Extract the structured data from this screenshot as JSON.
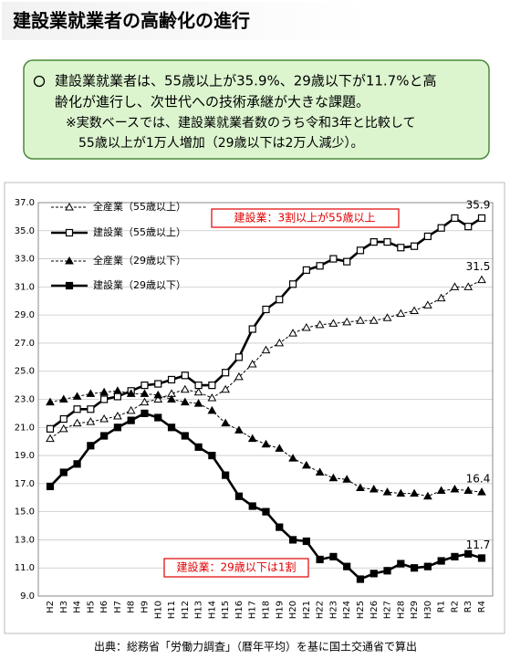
{
  "title": "建設業就業者の高齢化の進行",
  "summary": [
    "建設業就業者は、55歳以上が35.9%、29歳以下が11.7%と高",
    "齢化が進行し、次世代への技術承継が大きな課題。",
    "※実数ベースでは、建設業就業者数のうち令和3年と比較して",
    "55歳以上が1万人増加（29歳以下は2万人減少）。"
  ],
  "chart_data": {
    "type": "line",
    "categories": [
      "H2",
      "H3",
      "H4",
      "H5",
      "H6",
      "H7",
      "H8",
      "H9",
      "H10",
      "H11",
      "H12",
      "H13",
      "H14",
      "H15",
      "H16",
      "H17",
      "H18",
      "H19",
      "H20",
      "H21",
      "H22",
      "H23",
      "H24",
      "H25",
      "H26",
      "H27",
      "H28",
      "H29",
      "H30",
      "R1",
      "R2",
      "R3",
      "R4"
    ],
    "series": [
      {
        "name": "全産業（55歳以上）",
        "color": "#000000",
        "dashed": true,
        "marker": "triangle",
        "filled": false,
        "values": [
          20.2,
          20.9,
          21.3,
          21.4,
          21.6,
          21.8,
          22.2,
          22.8,
          23.0,
          23.4,
          23.7,
          23.5,
          23.1,
          23.7,
          24.6,
          25.5,
          26.5,
          27.0,
          27.7,
          28.1,
          28.3,
          28.4,
          28.5,
          28.6,
          28.6,
          28.8,
          29.1,
          29.3,
          29.7,
          30.2,
          31.0,
          31.0,
          31.5
        ]
      },
      {
        "name": "建設業（55歳以上）",
        "color": "#000000",
        "dashed": false,
        "marker": "square",
        "filled": false,
        "values": [
          20.9,
          21.6,
          22.3,
          22.3,
          23.0,
          23.2,
          23.6,
          24.0,
          24.1,
          24.4,
          24.7,
          24.0,
          24.0,
          24.9,
          26.0,
          28.0,
          29.4,
          30.1,
          31.2,
          32.2,
          32.5,
          33.0,
          32.8,
          33.6,
          34.2,
          34.2,
          33.8,
          33.9,
          34.6,
          35.2,
          35.9,
          35.3,
          35.9
        ]
      },
      {
        "name": "全産業（29歳以下）",
        "color": "#000000",
        "dashed": true,
        "marker": "triangle",
        "filled": true,
        "values": [
          22.8,
          23.0,
          23.2,
          23.4,
          23.5,
          23.6,
          23.4,
          23.4,
          23.3,
          23.0,
          22.8,
          22.7,
          22.2,
          21.3,
          20.8,
          20.2,
          19.8,
          19.5,
          18.8,
          18.3,
          17.8,
          17.4,
          17.3,
          16.7,
          16.6,
          16.4,
          16.3,
          16.3,
          16.1,
          16.5,
          16.6,
          16.5,
          16.4
        ]
      },
      {
        "name": "建設業（29歳以下）",
        "color": "#000000",
        "dashed": false,
        "marker": "square",
        "filled": true,
        "values": [
          16.8,
          17.8,
          18.4,
          19.7,
          20.4,
          21.0,
          21.5,
          22.0,
          21.7,
          21.0,
          20.4,
          19.6,
          19.0,
          17.6,
          16.1,
          15.4,
          15.0,
          13.9,
          13.0,
          12.9,
          11.6,
          11.8,
          11.1,
          10.2,
          10.6,
          10.8,
          11.3,
          11.0,
          11.1,
          11.5,
          11.8,
          12.0,
          11.7
        ]
      }
    ],
    "ylim": [
      9,
      37
    ],
    "yticks": [
      {
        "value": 9,
        "label": "9.0"
      },
      {
        "value": 11,
        "label": "11.0"
      },
      {
        "value": 13,
        "label": "13.0"
      },
      {
        "value": 15,
        "label": "15.0"
      },
      {
        "value": 17,
        "label": "17.0"
      },
      {
        "value": 19,
        "label": "19.0"
      },
      {
        "value": 21,
        "label": "21.0"
      },
      {
        "value": 23,
        "label": "23.0"
      },
      {
        "value": 25,
        "label": "25.0"
      },
      {
        "value": 27,
        "label": "27.0"
      },
      {
        "value": 29,
        "label": "29.0"
      },
      {
        "value": 31,
        "label": "31.0"
      },
      {
        "value": 33,
        "label": "33.0"
      },
      {
        "value": 35,
        "label": "35.0"
      },
      {
        "value": 37,
        "label": "37.0"
      }
    ],
    "grid": true,
    "legend": "upper left",
    "annotations": [
      "建設業：3割以上が55歳以上",
      "建設業：29歳以下は1割"
    ],
    "source": "出典：総務省「労働力調査」（暦年平均）を基に国土交通省で算出"
  }
}
